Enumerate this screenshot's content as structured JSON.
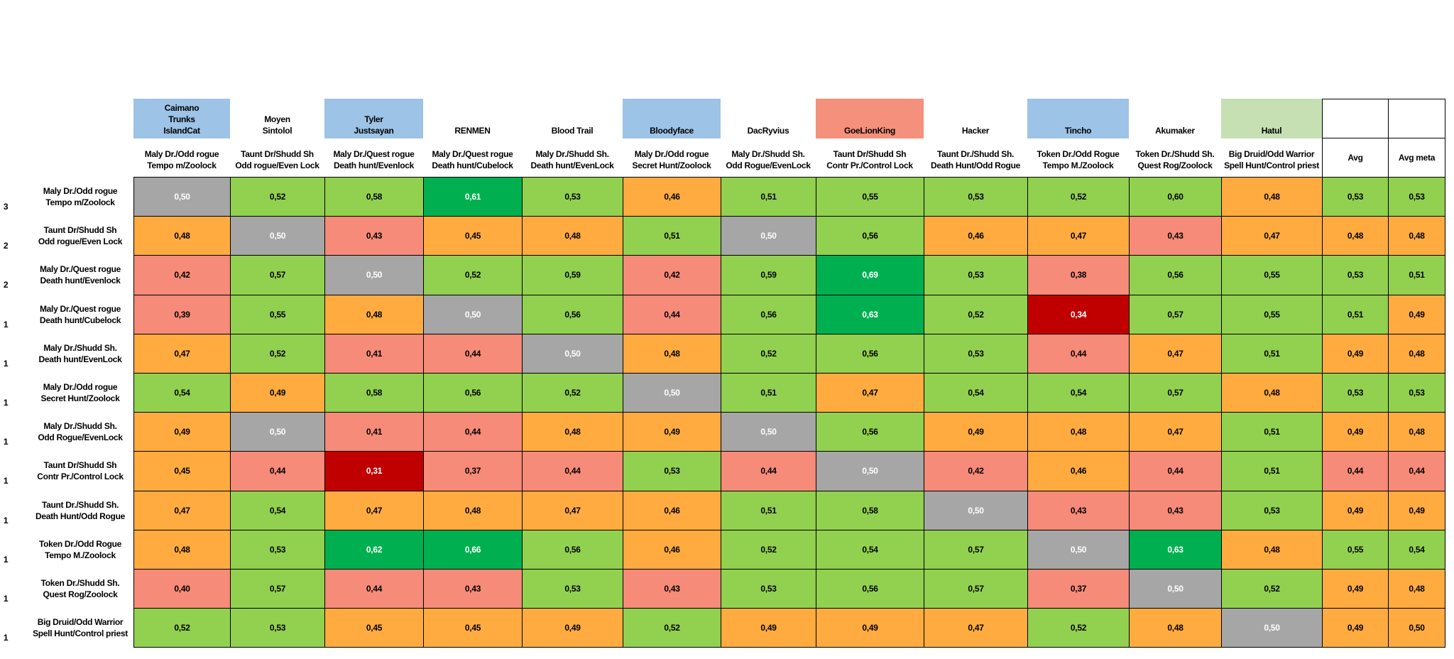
{
  "header": {
    "teams": [
      {
        "lines": [
          "Caimano",
          "Trunks",
          "IslandCat"
        ],
        "color": "#9dc3e6"
      },
      {
        "lines": [
          "Moyen",
          "Sintolol"
        ]
      },
      {
        "lines": [
          "Tyler",
          "Justsayan"
        ],
        "color": "#9dc3e6"
      },
      {
        "lines": [
          "RENMEN"
        ]
      },
      {
        "lines": [
          "Blood Trail"
        ]
      },
      {
        "lines": [
          "Bloodyface"
        ],
        "color": "#9dc3e6"
      },
      {
        "lines": [
          "DacRyvius"
        ]
      },
      {
        "lines": [
          "GoeLionKing"
        ],
        "color": "#f4907c"
      },
      {
        "lines": [
          "Hacker"
        ]
      },
      {
        "lines": [
          "Tincho"
        ],
        "color": "#9dc3e6"
      },
      {
        "lines": [
          "Akumaker"
        ]
      },
      {
        "lines": [
          "Hatul"
        ],
        "color": "#c6e0b4"
      }
    ]
  },
  "palette": {
    "n": {
      "fill": "#a6a6a6",
      "text": "#ffffff"
    },
    "g": {
      "fill": "#92d050",
      "text": "#000000"
    },
    "G": {
      "fill": "#00b050",
      "text": "#ffffff"
    },
    "o": {
      "fill": "#ffab40",
      "text": "#000000"
    },
    "s": {
      "fill": "#f58b78",
      "text": "#000000"
    },
    "r": {
      "fill": "#c00000",
      "text": "#ffffff"
    }
  },
  "table": {
    "columns": [
      [
        "Maly Dr./Odd rogue",
        "Tempo m/Zoolock"
      ],
      [
        "Taunt Dr/Shudd Sh",
        "Odd rogue/Even Lock"
      ],
      [
        "Maly Dr./Quest rogue",
        "Death hunt/Evenlock"
      ],
      [
        "Maly Dr./Quest rogue",
        "Death hunt/Cubelock"
      ],
      [
        "Maly Dr./Shudd Sh.",
        "Death hunt/EvenLock"
      ],
      [
        "Maly Dr./Odd rogue",
        "Secret Hunt/Zoolock"
      ],
      [
        "Maly Dr./Shudd Sh.",
        "Odd Rogue/EvenLock"
      ],
      [
        "Taunt Dr/Shudd Sh",
        "Contr Pr./Control Lock"
      ],
      [
        "Taunt Dr./Shudd Sh.",
        "Death Hunt/Odd Rogue"
      ],
      [
        "Token Dr./Odd Rogue",
        "Tempo M./Zoolock"
      ],
      [
        "Token Dr./Shudd Sh.",
        "Quest Rog/Zoolock"
      ],
      [
        "Big Druid/Odd Warrior",
        "Spell Hunt/Control priest"
      ],
      [
        "Avg"
      ],
      [
        "Avg meta"
      ]
    ],
    "rows": [
      {
        "count": 3,
        "label": [
          "Maly Dr./Odd rogue",
          "Tempo m/Zoolock"
        ],
        "cells": [
          "0,50",
          "0,52",
          "0,58",
          "0,61",
          "0,53",
          "0,46",
          "0,51",
          "0,55",
          "0,53",
          "0,52",
          "0,60",
          "0,48",
          "0,53",
          "0,53"
        ],
        "colors": [
          "n",
          "g",
          "g",
          "G",
          "g",
          "o",
          "g",
          "g",
          "g",
          "g",
          "g",
          "o",
          "g",
          "g"
        ]
      },
      {
        "count": 2,
        "label": [
          "Taunt Dr/Shudd Sh",
          "Odd rogue/Even Lock"
        ],
        "cells": [
          "0,48",
          "0,50",
          "0,43",
          "0,45",
          "0,48",
          "0,51",
          "0,50",
          "0,56",
          "0,46",
          "0,47",
          "0,43",
          "0,47",
          "0,48",
          "0,48"
        ],
        "colors": [
          "o",
          "n",
          "s",
          "o",
          "o",
          "g",
          "n",
          "g",
          "o",
          "o",
          "s",
          "o",
          "o",
          "o"
        ]
      },
      {
        "count": 2,
        "label": [
          "Maly Dr./Quest rogue",
          "Death hunt/Evenlock"
        ],
        "cells": [
          "0,42",
          "0,57",
          "0,50",
          "0,52",
          "0,59",
          "0,42",
          "0,59",
          "0,69",
          "0,53",
          "0,38",
          "0,56",
          "0,55",
          "0,53",
          "0,51"
        ],
        "colors": [
          "s",
          "g",
          "n",
          "g",
          "g",
          "s",
          "g",
          "G",
          "g",
          "s",
          "g",
          "g",
          "g",
          "g"
        ]
      },
      {
        "count": 1,
        "label": [
          "Maly Dr./Quest rogue",
          "Death hunt/Cubelock"
        ],
        "cells": [
          "0,39",
          "0,55",
          "0,48",
          "0,50",
          "0,56",
          "0,44",
          "0,56",
          "0,63",
          "0,52",
          "0,34",
          "0,57",
          "0,55",
          "0,51",
          "0,49"
        ],
        "colors": [
          "s",
          "g",
          "o",
          "n",
          "g",
          "s",
          "g",
          "G",
          "g",
          "r",
          "g",
          "g",
          "g",
          "o"
        ]
      },
      {
        "count": 1,
        "label": [
          "Maly Dr./Shudd Sh.",
          "Death hunt/EvenLock"
        ],
        "cells": [
          "0,47",
          "0,52",
          "0,41",
          "0,44",
          "0,50",
          "0,48",
          "0,52",
          "0,56",
          "0,53",
          "0,44",
          "0,47",
          "0,51",
          "0,49",
          "0,48"
        ],
        "colors": [
          "o",
          "g",
          "s",
          "s",
          "n",
          "o",
          "g",
          "g",
          "g",
          "s",
          "o",
          "g",
          "o",
          "o"
        ]
      },
      {
        "count": 1,
        "label": [
          "Maly Dr./Odd rogue",
          "Secret Hunt/Zoolock"
        ],
        "cells": [
          "0,54",
          "0,49",
          "0,58",
          "0,56",
          "0,52",
          "0,50",
          "0,51",
          "0,47",
          "0,54",
          "0,54",
          "0,57",
          "0,48",
          "0,53",
          "0,53"
        ],
        "colors": [
          "g",
          "o",
          "g",
          "g",
          "g",
          "n",
          "g",
          "o",
          "g",
          "g",
          "g",
          "o",
          "g",
          "g"
        ]
      },
      {
        "count": 1,
        "label": [
          "Maly Dr./Shudd Sh.",
          "Odd Rogue/EvenLock"
        ],
        "cells": [
          "0,49",
          "0,50",
          "0,41",
          "0,44",
          "0,48",
          "0,49",
          "0,50",
          "0,56",
          "0,49",
          "0,48",
          "0,47",
          "0,51",
          "0,49",
          "0,48"
        ],
        "colors": [
          "o",
          "n",
          "s",
          "s",
          "o",
          "o",
          "n",
          "g",
          "o",
          "o",
          "o",
          "g",
          "o",
          "o"
        ]
      },
      {
        "count": 1,
        "label": [
          "Taunt Dr/Shudd Sh",
          "Contr Pr./Control Lock"
        ],
        "cells": [
          "0,45",
          "0,44",
          "0,31",
          "0,37",
          "0,44",
          "0,53",
          "0,44",
          "0,50",
          "0,42",
          "0,46",
          "0,44",
          "0,51",
          "0,44",
          "0,44"
        ],
        "colors": [
          "o",
          "s",
          "r",
          "s",
          "s",
          "g",
          "s",
          "n",
          "s",
          "o",
          "s",
          "g",
          "s",
          "s"
        ]
      },
      {
        "count": 1,
        "label": [
          "Taunt Dr./Shudd Sh.",
          "Death Hunt/Odd Rogue"
        ],
        "cells": [
          "0,47",
          "0,54",
          "0,47",
          "0,48",
          "0,47",
          "0,46",
          "0,51",
          "0,58",
          "0,50",
          "0,43",
          "0,43",
          "0,53",
          "0,49",
          "0,49"
        ],
        "colors": [
          "o",
          "g",
          "o",
          "o",
          "o",
          "o",
          "g",
          "g",
          "n",
          "s",
          "s",
          "g",
          "o",
          "o"
        ]
      },
      {
        "count": 1,
        "label": [
          "Token Dr./Odd Rogue",
          "Tempo M./Zoolock"
        ],
        "cells": [
          "0,48",
          "0,53",
          "0,62",
          "0,66",
          "0,56",
          "0,46",
          "0,52",
          "0,54",
          "0,57",
          "0,50",
          "0,63",
          "0,48",
          "0,55",
          "0,54"
        ],
        "colors": [
          "o",
          "g",
          "G",
          "G",
          "g",
          "o",
          "g",
          "g",
          "g",
          "n",
          "G",
          "o",
          "g",
          "g"
        ]
      },
      {
        "count": 1,
        "label": [
          "Token Dr./Shudd Sh.",
          "Quest Rog/Zoolock"
        ],
        "cells": [
          "0,40",
          "0,57",
          "0,44",
          "0,43",
          "0,53",
          "0,43",
          "0,53",
          "0,56",
          "0,57",
          "0,37",
          "0,50",
          "0,52",
          "0,49",
          "0,48"
        ],
        "colors": [
          "s",
          "g",
          "s",
          "s",
          "g",
          "s",
          "g",
          "g",
          "g",
          "s",
          "n",
          "g",
          "o",
          "o"
        ]
      },
      {
        "count": 1,
        "label": [
          "Big Druid/Odd Warrior",
          "Spell Hunt/Control priest"
        ],
        "cells": [
          "0,52",
          "0,53",
          "0,45",
          "0,45",
          "0,49",
          "0,52",
          "0,49",
          "0,49",
          "0,47",
          "0,52",
          "0,48",
          "0,50",
          "0,49",
          "0,50"
        ],
        "colors": [
          "g",
          "g",
          "o",
          "o",
          "o",
          "g",
          "o",
          "o",
          "o",
          "g",
          "o",
          "n",
          "o",
          "o"
        ]
      }
    ]
  }
}
